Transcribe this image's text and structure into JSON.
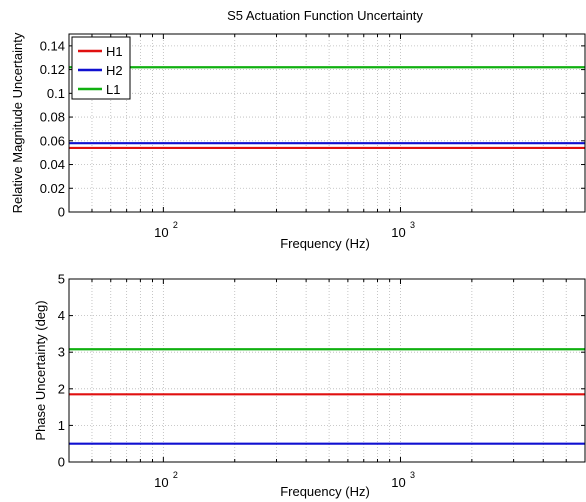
{
  "title": "S5 Actuation Function Uncertainty",
  "colors": {
    "H1": "#e01010",
    "H2": "#1010d0",
    "L1": "#10b010",
    "grid": "#b8b8b8",
    "axis": "#000000"
  },
  "chart_data": [
    {
      "type": "line",
      "title": "S5 Actuation Function Uncertainty",
      "xlabel": "Frequency (Hz)",
      "ylabel": "Relative Magnitude Uncertainty",
      "xscale": "log",
      "xlim": [
        40,
        6000
      ],
      "ylim": [
        0,
        0.15
      ],
      "yticks": [
        0,
        0.02,
        0.04,
        0.06,
        0.08,
        0.1,
        0.12,
        0.14
      ],
      "ytick_labels": [
        "0",
        "0.02",
        "0.04",
        "0.06",
        "0.08",
        "0.1",
        "0.12",
        "0.14"
      ],
      "xticks": [
        100,
        1000
      ],
      "xtick_labels": [
        {
          "base": "10",
          "exp": "2"
        },
        {
          "base": "10",
          "exp": "3"
        }
      ],
      "grid": true,
      "legend": "top-left",
      "series": [
        {
          "name": "H1",
          "color": "#e01010",
          "x": [
            40,
            6000
          ],
          "y": [
            0.054,
            0.054
          ]
        },
        {
          "name": "H2",
          "color": "#1010d0",
          "x": [
            40,
            6000
          ],
          "y": [
            0.058,
            0.058
          ]
        },
        {
          "name": "L1",
          "color": "#10b010",
          "x": [
            40,
            6000
          ],
          "y": [
            0.122,
            0.122
          ]
        }
      ]
    },
    {
      "type": "line",
      "title": "",
      "xlabel": "Frequency (Hz)",
      "ylabel": "Phase Uncertainty (deg)",
      "xscale": "log",
      "xlim": [
        40,
        6000
      ],
      "ylim": [
        0,
        5
      ],
      "yticks": [
        0,
        1,
        2,
        3,
        4,
        5
      ],
      "ytick_labels": [
        "0",
        "1",
        "2",
        "3",
        "4",
        "5"
      ],
      "xticks": [
        100,
        1000
      ],
      "xtick_labels": [
        {
          "base": "10",
          "exp": "2"
        },
        {
          "base": "10",
          "exp": "3"
        }
      ],
      "grid": true,
      "legend": "",
      "series": [
        {
          "name": "",
          "color": "#e01010",
          "x": [
            40,
            6000
          ],
          "y": [
            1.85,
            1.85
          ]
        },
        {
          "name": "",
          "color": "#1010d0",
          "x": [
            40,
            6000
          ],
          "y": [
            0.5,
            0.5
          ]
        },
        {
          "name": "",
          "color": "#10b010",
          "x": [
            40,
            6000
          ],
          "y": [
            3.08,
            3.08
          ]
        }
      ]
    }
  ]
}
